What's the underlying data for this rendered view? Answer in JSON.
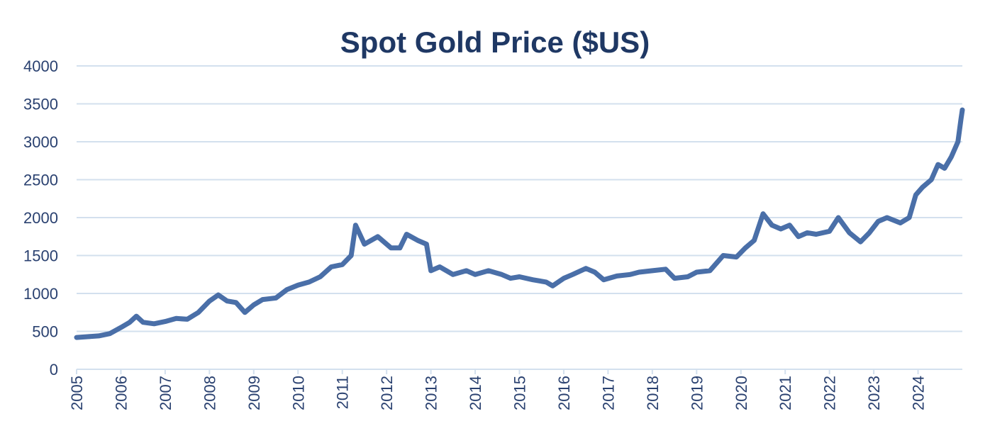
{
  "chart_data": {
    "type": "line",
    "title": "Spot Gold Price ($US)",
    "x": [
      2005.0,
      2005.25,
      2005.5,
      2005.75,
      2006.0,
      2006.2,
      2006.35,
      2006.5,
      2006.75,
      2007.0,
      2007.25,
      2007.5,
      2007.75,
      2008.0,
      2008.2,
      2008.4,
      2008.6,
      2008.8,
      2009.0,
      2009.2,
      2009.5,
      2009.75,
      2010.0,
      2010.25,
      2010.5,
      2010.75,
      2011.0,
      2011.2,
      2011.3,
      2011.5,
      2011.8,
      2012.1,
      2012.3,
      2012.45,
      2012.7,
      2012.9,
      2013.0,
      2013.2,
      2013.5,
      2013.8,
      2014.0,
      2014.3,
      2014.6,
      2014.8,
      2015.0,
      2015.3,
      2015.6,
      2015.75,
      2016.0,
      2016.2,
      2016.5,
      2016.7,
      2016.9,
      2017.2,
      2017.5,
      2017.7,
      2018.0,
      2018.3,
      2018.5,
      2018.8,
      2019.0,
      2019.3,
      2019.6,
      2019.9,
      2020.1,
      2020.3,
      2020.5,
      2020.7,
      2020.9,
      2021.1,
      2021.3,
      2021.5,
      2021.7,
      2022.0,
      2022.2,
      2022.45,
      2022.7,
      2022.9,
      2023.1,
      2023.3,
      2023.6,
      2023.8,
      2023.95,
      2024.1,
      2024.3,
      2024.45,
      2024.6,
      2024.75,
      2024.9,
      2024.97,
      2025.0
    ],
    "series": [
      {
        "name": "Spot Gold Price",
        "color": "#4a6fa8",
        "values": [
          420,
          430,
          440,
          470,
          550,
          620,
          700,
          620,
          600,
          630,
          670,
          660,
          750,
          900,
          980,
          900,
          880,
          750,
          850,
          920,
          940,
          1050,
          1110,
          1150,
          1220,
          1350,
          1380,
          1500,
          1900,
          1650,
          1750,
          1600,
          1600,
          1780,
          1700,
          1650,
          1300,
          1350,
          1250,
          1300,
          1250,
          1300,
          1250,
          1200,
          1220,
          1180,
          1150,
          1100,
          1200,
          1250,
          1330,
          1280,
          1180,
          1230,
          1250,
          1280,
          1300,
          1320,
          1200,
          1220,
          1280,
          1300,
          1500,
          1480,
          1600,
          1700,
          2050,
          1900,
          1850,
          1900,
          1750,
          1800,
          1780,
          1820,
          2000,
          1800,
          1680,
          1800,
          1950,
          2000,
          1930,
          2000,
          2300,
          2400,
          2500,
          2700,
          2650,
          2800,
          3000,
          3300,
          3420
        ]
      }
    ],
    "xlim": [
      2005,
      2025
    ],
    "xticks": [
      2005,
      2006,
      2007,
      2008,
      2009,
      2010,
      2011,
      2012,
      2013,
      2014,
      2015,
      2016,
      2017,
      2018,
      2019,
      2020,
      2021,
      2022,
      2023,
      2024
    ],
    "ylim": [
      0,
      4000
    ],
    "yticks": [
      0,
      500,
      1000,
      1500,
      2000,
      2500,
      3000,
      3500,
      4000
    ],
    "grid": true
  }
}
